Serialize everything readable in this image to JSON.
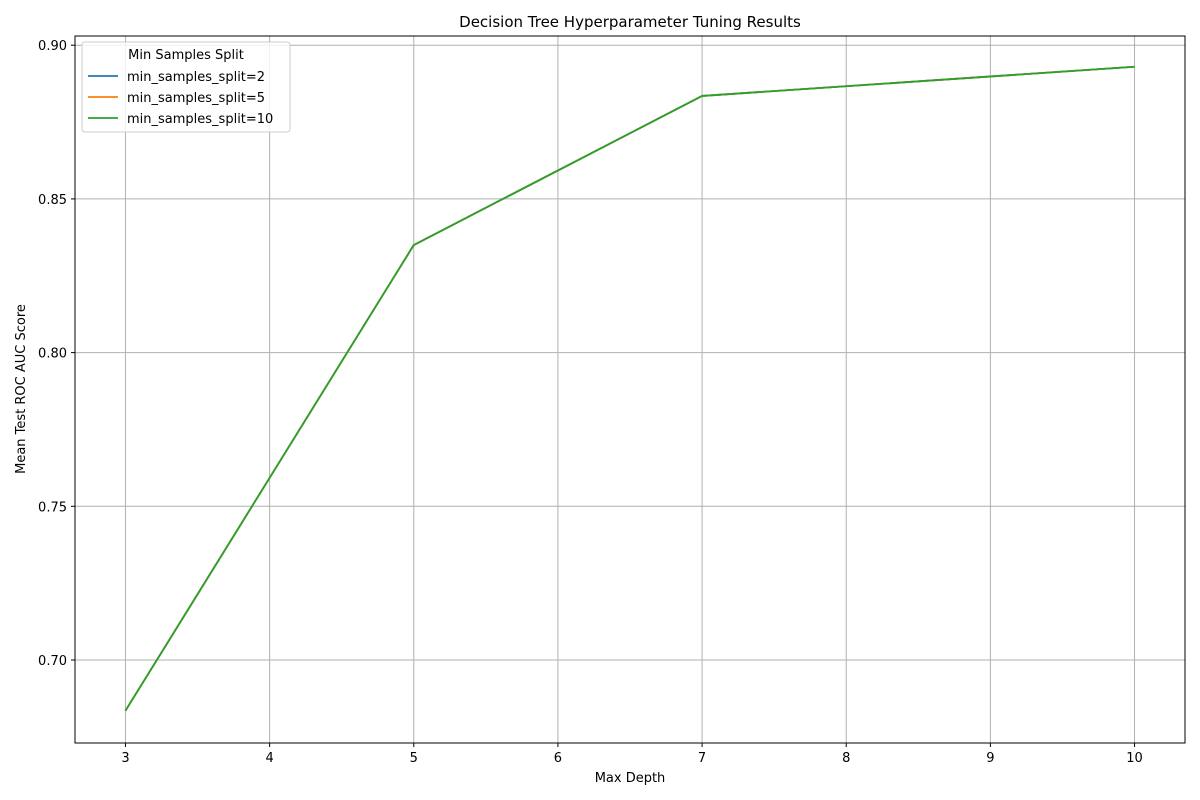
{
  "chart_data": {
    "type": "line",
    "title": "Decision Tree Hyperparameter Tuning Results",
    "xlabel": "Max Depth",
    "ylabel": "Mean Test ROC AUC Score",
    "xlim": [
      2.65,
      10.35
    ],
    "ylim": [
      0.673,
      0.903
    ],
    "xticks": [
      3,
      4,
      5,
      6,
      7,
      8,
      9,
      10
    ],
    "yticks": [
      0.7,
      0.75,
      0.8,
      0.85,
      0.9
    ],
    "ytick_labels": [
      "0.70",
      "0.75",
      "0.80",
      "0.85",
      "0.90"
    ],
    "grid": true,
    "legend": {
      "title": "Min Samples Split",
      "placement": "top-left"
    },
    "x": [
      3,
      5,
      7,
      10
    ],
    "series": [
      {
        "name": "min_samples_split=2",
        "color": "#1f77b4",
        "values": [
          0.6835,
          0.835,
          0.8835,
          0.893
        ]
      },
      {
        "name": "min_samples_split=5",
        "color": "#ff7f0e",
        "values": [
          0.6835,
          0.835,
          0.8835,
          0.893
        ]
      },
      {
        "name": "min_samples_split=10",
        "color": "#2ca02c",
        "values": [
          0.6835,
          0.835,
          0.8835,
          0.893
        ]
      }
    ]
  }
}
